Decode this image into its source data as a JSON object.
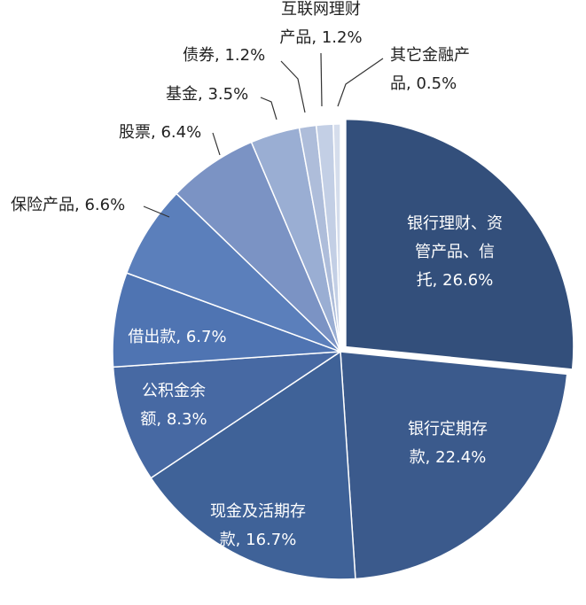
{
  "chart_data": {
    "type": "pie",
    "title": "",
    "start_angle_deg": 90,
    "direction": "clockwise",
    "colors": {
      "slice_border": "#ffffff",
      "label_outside": "#222222",
      "label_inside": "#ffffff",
      "leader": "#333333"
    },
    "slices": [
      {
        "name": "银行理财、资管产品、信托",
        "value": 26.6,
        "label_lines": [
          "银行理财、资",
          "管产品、信",
          "托, 26.6%"
        ],
        "color": "#334f7b",
        "label_inside": true,
        "exploded": true
      },
      {
        "name": "银行定期存款",
        "value": 22.4,
        "label_lines": [
          "银行定期存",
          "款, 22.4%"
        ],
        "color": "#3b5a8c",
        "label_inside": true
      },
      {
        "name": "现金及活期存款",
        "value": 16.7,
        "label_lines": [
          "现金及活期存",
          "款, 16.7%"
        ],
        "color": "#3f6298",
        "label_inside": true
      },
      {
        "name": "公积金余额",
        "value": 8.3,
        "label_lines": [
          "公积金余",
          "额, 8.3%"
        ],
        "color": "#4769a3",
        "label_inside": true
      },
      {
        "name": "借出款",
        "value": 6.7,
        "label_lines": [
          "借出款, 6.7%"
        ],
        "color": "#4f74b2",
        "label_inside": true
      },
      {
        "name": "保险产品",
        "value": 6.6,
        "label_lines": [
          "保险产品, 6.6%"
        ],
        "color": "#5b7fbb",
        "label_inside": false
      },
      {
        "name": "股票",
        "value": 6.4,
        "label_lines": [
          "股票, 6.4%"
        ],
        "color": "#7b93c4",
        "label_inside": false
      },
      {
        "name": "基金",
        "value": 3.5,
        "label_lines": [
          "基金, 3.5%"
        ],
        "color": "#9aaed3",
        "label_inside": false
      },
      {
        "name": "债券",
        "value": 1.2,
        "label_lines": [
          "债券, 1.2%"
        ],
        "color": "#aebdda",
        "label_inside": false
      },
      {
        "name": "互联网理财产品",
        "value": 1.2,
        "label_lines": [
          "互联网理财",
          "产品, 1.2%"
        ],
        "color": "#c3cfe5",
        "label_inside": false
      },
      {
        "name": "其它金融产品",
        "value": 0.5,
        "label_lines": [
          "其它金融产",
          "品, 0.5%"
        ],
        "color": "#d5ddec",
        "label_inside": false
      }
    ]
  }
}
